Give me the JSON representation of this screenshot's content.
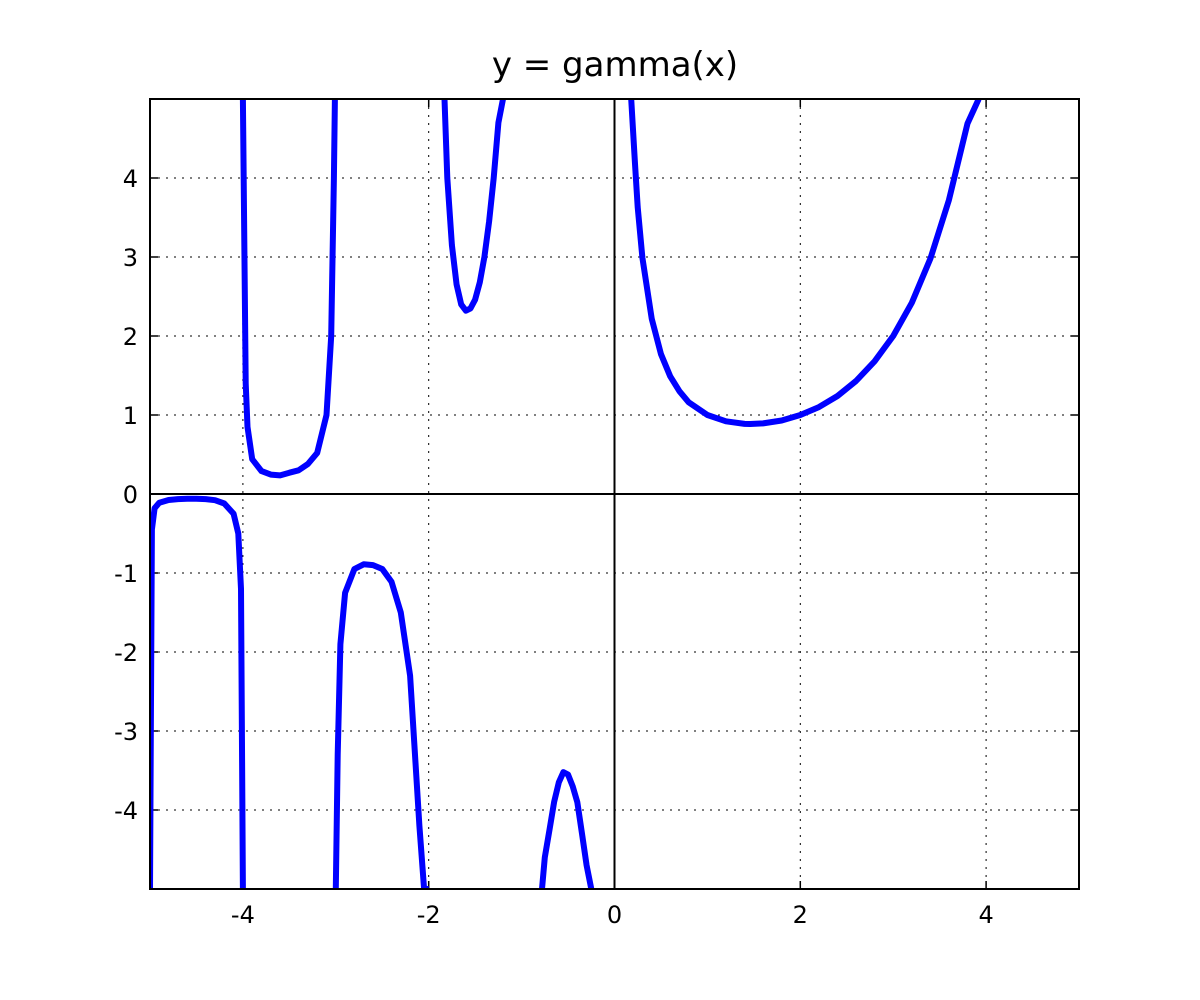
{
  "chart_data": {
    "type": "line",
    "title": "y = gamma(x)",
    "xlabel": "",
    "ylabel": "",
    "xlim": [
      -5,
      5
    ],
    "ylim": [
      -5,
      5
    ],
    "x_ticks": [
      -4,
      -2,
      0,
      2,
      4
    ],
    "y_ticks": [
      -4,
      -3,
      -2,
      -1,
      0,
      1,
      2,
      3,
      4
    ],
    "x_tick_labels": [
      "-4",
      "-2",
      "0",
      "2",
      "4"
    ],
    "y_tick_labels": [
      "-4",
      "-3",
      "-2",
      "-1",
      "0",
      "1",
      "2",
      "3",
      "4"
    ],
    "grid": true,
    "axis_lines_at_zero": true,
    "series_color": "#0000ff",
    "series": [
      {
        "segments": [
          {
            "x": [
              -5.0,
              -4.98,
              -4.95,
              -4.9,
              -4.8,
              -4.7,
              -4.6,
              -4.5,
              -4.4,
              -4.3,
              -4.2,
              -4.1,
              -4.05,
              -4.02,
              -4.0
            ],
            "y": [
              -5.0,
              -0.45,
              -0.18,
              -0.11,
              -0.076,
              -0.064,
              -0.061,
              -0.06,
              -0.064,
              -0.078,
              -0.12,
              -0.25,
              -0.5,
              -1.2,
              -5.0
            ]
          },
          {
            "x": [
              -4.0,
              -3.97,
              -3.95,
              -3.9,
              -3.8,
              -3.7,
              -3.6,
              -3.5,
              -3.4,
              -3.3,
              -3.2,
              -3.1,
              -3.05,
              -3.02,
              -3.01
            ],
            "y": [
              5.0,
              1.4,
              0.85,
              0.44,
              0.29,
              0.246,
              0.236,
              0.27,
              0.3,
              0.38,
              0.52,
              1.0,
              2.0,
              4.0,
              5.0
            ]
          },
          {
            "x": [
              -3.0,
              -2.98,
              -2.95,
              -2.9,
              -2.8,
              -2.7,
              -2.6,
              -2.5,
              -2.4,
              -2.3,
              -2.2,
              -2.1,
              -2.05,
              -2.0
            ],
            "y": [
              -5.0,
              -3.3,
              -1.9,
              -1.25,
              -0.95,
              -0.89,
              -0.9,
              -0.95,
              -1.11,
              -1.5,
              -2.3,
              -4.2,
              -5.0,
              -5.0
            ]
          },
          {
            "x": [
              -1.83,
              -1.8,
              -1.75,
              -1.7,
              -1.65,
              -1.6,
              -1.55,
              -1.5,
              -1.45,
              -1.4,
              -1.35,
              -1.3,
              -1.25,
              -1.2
            ],
            "y": [
              5.0,
              4.0,
              3.15,
              2.65,
              2.4,
              2.32,
              2.35,
              2.46,
              2.68,
              3.0,
              3.45,
              4.0,
              4.7,
              5.0
            ]
          },
          {
            "x": [
              -0.78,
              -0.75,
              -0.7,
              -0.65,
              -0.6,
              -0.55,
              -0.5,
              -0.45,
              -0.4,
              -0.35,
              -0.3,
              -0.25
            ],
            "y": [
              -5.0,
              -4.6,
              -4.25,
              -3.9,
              -3.65,
              -3.52,
              -3.55,
              -3.7,
              -3.9,
              -4.3,
              -4.7,
              -5.0
            ]
          },
          {
            "x": [
              0.18,
              0.22,
              0.25,
              0.3,
              0.4,
              0.5,
              0.6,
              0.7,
              0.8,
              1.0,
              1.2,
              1.4,
              1.46,
              1.6,
              1.8,
              2.0,
              2.2,
              2.4,
              2.6,
              2.8,
              3.0,
              3.2,
              3.4,
              3.6,
              3.8,
              3.92
            ],
            "y": [
              5.0,
              4.2,
              3.63,
              2.99,
              2.22,
              1.77,
              1.49,
              1.3,
              1.16,
              1.0,
              0.92,
              0.887,
              0.886,
              0.894,
              0.93,
              1.0,
              1.1,
              1.24,
              1.43,
              1.68,
              2.0,
              2.42,
              2.98,
              3.72,
              4.69,
              5.0
            ]
          }
        ]
      }
    ]
  }
}
